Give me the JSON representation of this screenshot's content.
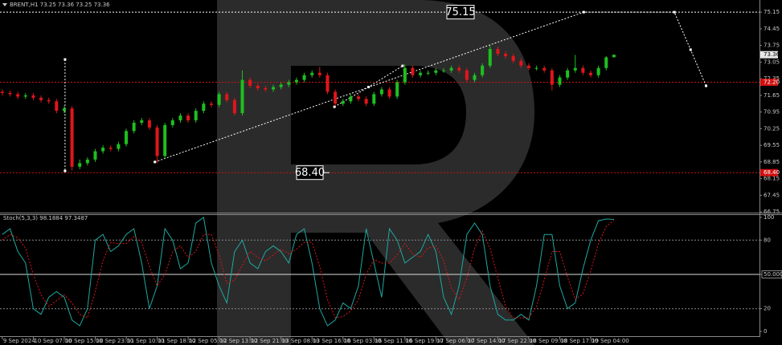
{
  "chart_data": [
    {
      "type": "candlestick",
      "title": "BRENT,H1  73.25 73.36 73.25 73.36",
      "xlim": [
        -0.3,
        97.8
      ],
      "ylim": [
        66.72,
        75.66
      ],
      "yticks": [
        75.15,
        74.45,
        73.75,
        73.05,
        72.35,
        71.65,
        70.95,
        70.25,
        69.55,
        68.85,
        68.15,
        67.45,
        66.75
      ],
      "xticks": [
        {
          "value": 0,
          "label": "9 Sep 2024"
        },
        {
          "value": 4,
          "label": "10 Sep 07:00"
        },
        {
          "value": 8,
          "label": "10 Sep 15:00"
        },
        {
          "value": 12,
          "label": "10 Sep 23:00"
        },
        {
          "value": 16,
          "label": "11 Sep 10:00"
        },
        {
          "value": 20,
          "label": "11 Sep 18:00"
        },
        {
          "value": 24,
          "label": "12 Sep 05:00"
        },
        {
          "value": 28,
          "label": "12 Sep 13:00"
        },
        {
          "value": 32,
          "label": "12 Sep 21:00"
        },
        {
          "value": 36,
          "label": "13 Sep 08:00"
        },
        {
          "value": 40,
          "label": "13 Sep 16:00"
        },
        {
          "value": 44,
          "label": "16 Sep 03:00"
        },
        {
          "value": 48,
          "label": "16 Sep 11:00"
        },
        {
          "value": 52,
          "label": "16 Sep 19:00"
        },
        {
          "value": 56,
          "label": "17 Sep 06:00"
        },
        {
          "value": 60,
          "label": "17 Sep 14:00"
        },
        {
          "value": 64,
          "label": "17 Sep 22:00"
        },
        {
          "value": 68,
          "label": "18 Sep 09:00"
        },
        {
          "value": 72,
          "label": "18 Sep 17:00"
        },
        {
          "value": 76,
          "label": "19 Sep 04:00"
        }
      ],
      "open": [
        71.8,
        71.75,
        71.7,
        71.6,
        71.65,
        71.55,
        71.45,
        71.4,
        71.0,
        71.1,
        68.65,
        68.8,
        68.95,
        69.3,
        69.45,
        69.4,
        69.6,
        70.15,
        70.5,
        70.6,
        70.3,
        69.1,
        70.4,
        70.6,
        70.8,
        70.6,
        71.0,
        71.3,
        71.25,
        71.7,
        71.45,
        70.9,
        72.3,
        72.05,
        71.95,
        71.9,
        72.0,
        72.1,
        72.2,
        72.3,
        72.5,
        72.6,
        72.5,
        71.8,
        71.3,
        71.4,
        71.6,
        71.5,
        71.3,
        71.7,
        71.9,
        71.6,
        72.2,
        72.8,
        72.5,
        72.6,
        72.6,
        72.7,
        72.7,
        72.8,
        72.7,
        72.3,
        72.5,
        72.9,
        73.6,
        73.4,
        73.3,
        73.1,
        72.9,
        72.8,
        72.8,
        72.7,
        72.1,
        72.4,
        72.7,
        72.8,
        72.6,
        72.5,
        72.8,
        73.25
      ],
      "high": [
        71.9,
        71.85,
        71.8,
        71.75,
        71.75,
        71.65,
        71.55,
        71.5,
        71.2,
        71.2,
        68.95,
        69.05,
        69.4,
        69.55,
        69.55,
        69.7,
        70.25,
        70.6,
        70.7,
        70.7,
        70.4,
        70.5,
        70.7,
        70.9,
        70.9,
        71.1,
        71.4,
        71.4,
        71.8,
        71.8,
        71.55,
        72.7,
        72.4,
        72.15,
        72.05,
        72.1,
        72.2,
        72.3,
        72.4,
        72.6,
        72.7,
        72.85,
        72.6,
        71.9,
        71.5,
        71.7,
        71.7,
        71.6,
        71.8,
        72.0,
        72.0,
        72.3,
        72.95,
        72.9,
        72.7,
        72.7,
        72.8,
        72.8,
        72.9,
        72.9,
        72.8,
        72.6,
        73.0,
        73.75,
        73.7,
        73.5,
        73.4,
        73.2,
        73.0,
        72.9,
        72.9,
        72.8,
        72.5,
        72.8,
        73.35,
        72.9,
        72.7,
        72.9,
        73.3,
        73.36
      ],
      "low": [
        71.65,
        71.6,
        71.5,
        71.5,
        71.45,
        71.35,
        71.3,
        70.9,
        70.9,
        68.5,
        68.55,
        68.7,
        68.85,
        69.2,
        69.3,
        69.3,
        69.5,
        70.05,
        70.4,
        70.2,
        68.8,
        69.0,
        70.3,
        70.5,
        70.5,
        70.5,
        70.9,
        71.15,
        71.15,
        71.35,
        70.8,
        70.8,
        71.95,
        71.85,
        71.8,
        71.8,
        71.9,
        72.0,
        72.1,
        72.2,
        72.4,
        72.4,
        71.7,
        71.2,
        71.2,
        71.3,
        71.4,
        71.2,
        71.2,
        71.6,
        71.5,
        71.5,
        72.1,
        72.4,
        72.4,
        72.5,
        72.5,
        72.6,
        72.6,
        72.6,
        72.2,
        72.2,
        72.4,
        72.8,
        73.3,
        73.2,
        73.0,
        72.8,
        72.7,
        72.7,
        72.6,
        71.85,
        72.0,
        72.3,
        72.6,
        72.5,
        72.4,
        72.4,
        72.7,
        73.25
      ],
      "close": [
        71.75,
        71.7,
        71.6,
        71.65,
        71.55,
        71.45,
        71.4,
        71.0,
        71.1,
        68.65,
        68.8,
        68.95,
        69.3,
        69.45,
        69.4,
        69.6,
        70.15,
        70.5,
        70.6,
        70.3,
        69.1,
        70.4,
        70.6,
        70.8,
        70.6,
        71.0,
        71.3,
        71.25,
        71.7,
        71.45,
        70.9,
        72.3,
        72.05,
        71.95,
        71.9,
        72.0,
        72.1,
        72.2,
        72.3,
        72.5,
        72.6,
        72.5,
        71.8,
        71.3,
        71.4,
        71.6,
        71.5,
        71.3,
        71.7,
        71.9,
        71.6,
        72.2,
        72.8,
        72.5,
        72.6,
        72.6,
        72.7,
        72.7,
        72.8,
        72.7,
        72.3,
        72.5,
        72.9,
        73.6,
        73.4,
        73.3,
        73.1,
        72.9,
        72.8,
        72.8,
        72.7,
        72.1,
        72.4,
        72.7,
        72.8,
        72.6,
        72.5,
        72.8,
        73.25,
        73.36
      ],
      "up_color": "#1fbf1f",
      "down_color": "#e0161b",
      "current_price": 73.36,
      "levels": [
        {
          "value": 72.2,
          "label": "72.20"
        },
        {
          "value": 68.4,
          "label": "68.40"
        }
      ],
      "level_color": "#d01010",
      "annotations": [
        75.15,
        {
          "value": 68.4,
          "label": "68.40"
        }
      ],
      "forecast": [
        {
          "x": [
            19.7,
            75.1,
            86.8,
            88.9,
            90.9
          ],
          "values": [
            68.85,
            75.15,
            75.15,
            73.57,
            72.05
          ]
        },
        {
          "x": [
            42.9,
            47.3,
            51.7
          ],
          "values": [
            71.17,
            72.0,
            72.89
          ]
        },
        {
          "x": [
            8.1,
            8.1
          ],
          "values": [
            73.16,
            68.47
          ]
        }
      ],
      "forecast_color": "#ffffff"
    },
    {
      "type": "line",
      "title": "Stoch(5,3,3) 98.1884 97.3487",
      "ylim": [
        -2,
        102
      ],
      "yticks": [
        100,
        80,
        {
          "value": 50,
          "label": "50.0000"
        },
        20,
        0
      ],
      "series": [
        {
          "color": "#1fa8a0",
          "dash": false,
          "values": [
            85,
            90,
            70,
            60,
            20,
            15,
            30,
            35,
            30,
            10,
            5,
            20,
            80,
            85,
            70,
            75,
            85,
            90,
            60,
            20,
            40,
            90,
            80,
            55,
            60,
            95,
            100,
            60,
            40,
            25,
            70,
            80,
            60,
            55,
            70,
            75,
            70,
            60,
            85,
            90,
            60,
            20,
            5,
            10,
            25,
            20,
            40,
            90,
            60,
            30,
            90,
            80,
            60,
            65,
            70,
            85,
            70,
            30,
            15,
            40,
            85,
            95,
            85,
            40,
            15,
            10,
            10,
            15,
            10,
            40,
            85,
            85,
            40,
            20,
            25,
            55,
            80,
            97,
            98.5,
            98.1884
          ]
        },
        {
          "color": "#e0161b",
          "dash": true,
          "values": [
            80,
            85,
            82,
            73,
            50,
            32,
            22,
            27,
            32,
            25,
            15,
            12,
            35,
            62,
            78,
            77,
            77,
            83,
            78,
            57,
            40,
            50,
            70,
            75,
            65,
            70,
            85,
            85,
            67,
            42,
            45,
            58,
            70,
            65,
            62,
            67,
            72,
            68,
            72,
            78,
            78,
            57,
            28,
            12,
            13,
            18,
            28,
            50,
            63,
            60,
            60,
            67,
            77,
            68,
            65,
            73,
            75,
            62,
            38,
            28,
            47,
            73,
            88,
            73,
            47,
            22,
            12,
            12,
            12,
            22,
            45,
            70,
            70,
            48,
            28,
            33,
            53,
            77,
            92,
            97.3487
          ]
        }
      ]
    }
  ]
}
